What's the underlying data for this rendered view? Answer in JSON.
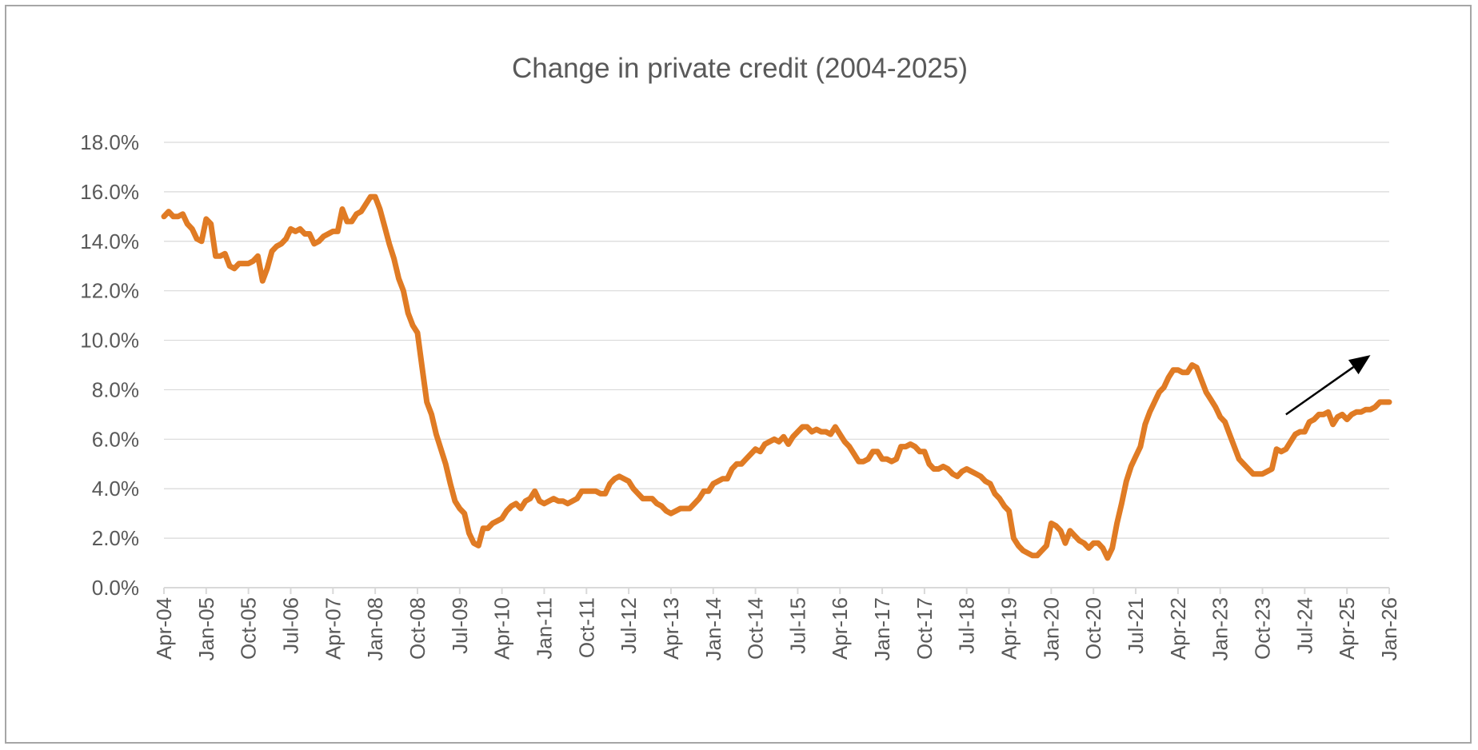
{
  "chart_data": {
    "type": "line",
    "title": "Change in private credit (2004-2025)",
    "xlabel": "",
    "ylabel": "",
    "ylim": [
      0,
      18
    ],
    "yticks": [
      "0.0%",
      "2.0%",
      "4.0%",
      "6.0%",
      "8.0%",
      "10.0%",
      "12.0%",
      "14.0%",
      "16.0%",
      "18.0%"
    ],
    "xticks": [
      "Apr-04",
      "Jan-05",
      "Oct-05",
      "Jul-06",
      "Apr-07",
      "Jan-08",
      "Oct-08",
      "Jul-09",
      "Apr-10",
      "Jan-11",
      "Oct-11",
      "Jul-12",
      "Apr-13",
      "Jan-14",
      "Oct-14",
      "Jul-15",
      "Apr-16",
      "Jan-17",
      "Oct-17",
      "Jul-18",
      "Apr-19",
      "Jan-20",
      "Oct-20",
      "Jul-21",
      "Apr-22",
      "Jan-23",
      "Oct-23",
      "Jul-24",
      "Apr-25",
      "Jan-26"
    ],
    "grid": true,
    "legend": "none",
    "series_color": "#E07B24",
    "series": [
      {
        "start": "Apr-04",
        "frequency": "monthly",
        "values": [
          15.0,
          15.2,
          15.0,
          15.0,
          15.1,
          14.7,
          14.5,
          14.1,
          14.0,
          14.9,
          14.7,
          13.4,
          13.4,
          13.5,
          13.0,
          12.9,
          13.1,
          13.1,
          13.1,
          13.2,
          13.4,
          12.4,
          12.9,
          13.6,
          13.8,
          13.9,
          14.1,
          14.5,
          14.4,
          14.5,
          14.3,
          14.3,
          13.9,
          14.0,
          14.2,
          14.3,
          14.4,
          14.4,
          15.3,
          14.8,
          14.8,
          15.1,
          15.2,
          15.5,
          15.8,
          15.8,
          15.3,
          14.6,
          13.9,
          13.3,
          12.5,
          12.0,
          11.1,
          10.6,
          10.3,
          8.9,
          7.5,
          7.0,
          6.2,
          5.6,
          5.0,
          4.2,
          3.5,
          3.2,
          3.0,
          2.2,
          1.8,
          1.7,
          2.4,
          2.4,
          2.6,
          2.7,
          2.8,
          3.1,
          3.3,
          3.4,
          3.2,
          3.5,
          3.6,
          3.9,
          3.5,
          3.4,
          3.5,
          3.6,
          3.5,
          3.5,
          3.4,
          3.5,
          3.6,
          3.9,
          3.9,
          3.9,
          3.9,
          3.8,
          3.8,
          4.2,
          4.4,
          4.5,
          4.4,
          4.3,
          4.0,
          3.8,
          3.6,
          3.6,
          3.6,
          3.4,
          3.3,
          3.1,
          3.0,
          3.1,
          3.2,
          3.2,
          3.2,
          3.4,
          3.6,
          3.9,
          3.9,
          4.2,
          4.3,
          4.4,
          4.4,
          4.8,
          5.0,
          5.0,
          5.2,
          5.4,
          5.6,
          5.5,
          5.8,
          5.9,
          6.0,
          5.9,
          6.1,
          5.8,
          6.1,
          6.3,
          6.5,
          6.5,
          6.3,
          6.4,
          6.3,
          6.3,
          6.2,
          6.5,
          6.2,
          5.9,
          5.7,
          5.4,
          5.1,
          5.1,
          5.2,
          5.5,
          5.5,
          5.2,
          5.2,
          5.1,
          5.2,
          5.7,
          5.7,
          5.8,
          5.7,
          5.5,
          5.5,
          5.0,
          4.8,
          4.8,
          4.9,
          4.8,
          4.6,
          4.5,
          4.7,
          4.8,
          4.7,
          4.6,
          4.5,
          4.3,
          4.2,
          3.8,
          3.6,
          3.3,
          3.1,
          2.0,
          1.7,
          1.5,
          1.4,
          1.3,
          1.3,
          1.5,
          1.7,
          2.6,
          2.5,
          2.3,
          1.8,
          2.3,
          2.1,
          1.9,
          1.8,
          1.6,
          1.8,
          1.8,
          1.6,
          1.2,
          1.6,
          2.6,
          3.4,
          4.3,
          4.9,
          5.3,
          5.7,
          6.6,
          7.1,
          7.5,
          7.9,
          8.1,
          8.5,
          8.8,
          8.8,
          8.7,
          8.7,
          9.0,
          8.9,
          8.4,
          7.9,
          7.6,
          7.3,
          6.9,
          6.7,
          6.2,
          5.7,
          5.2,
          5.0,
          4.8,
          4.6,
          4.6,
          4.6,
          4.7,
          4.8,
          5.6,
          5.5,
          5.6,
          5.9,
          6.2,
          6.3,
          6.3,
          6.7,
          6.8,
          7.0,
          7.0,
          7.1,
          6.6,
          6.9,
          7.0,
          6.8,
          7.0,
          7.1,
          7.1,
          7.2,
          7.2,
          7.3,
          7.5,
          7.5,
          7.5
        ]
      }
    ],
    "annotations": [
      {
        "type": "arrow",
        "from": [
          "Mar-24",
          7.0
        ],
        "to": [
          "Sep-25",
          9.4
        ],
        "color": "#000000"
      }
    ]
  }
}
